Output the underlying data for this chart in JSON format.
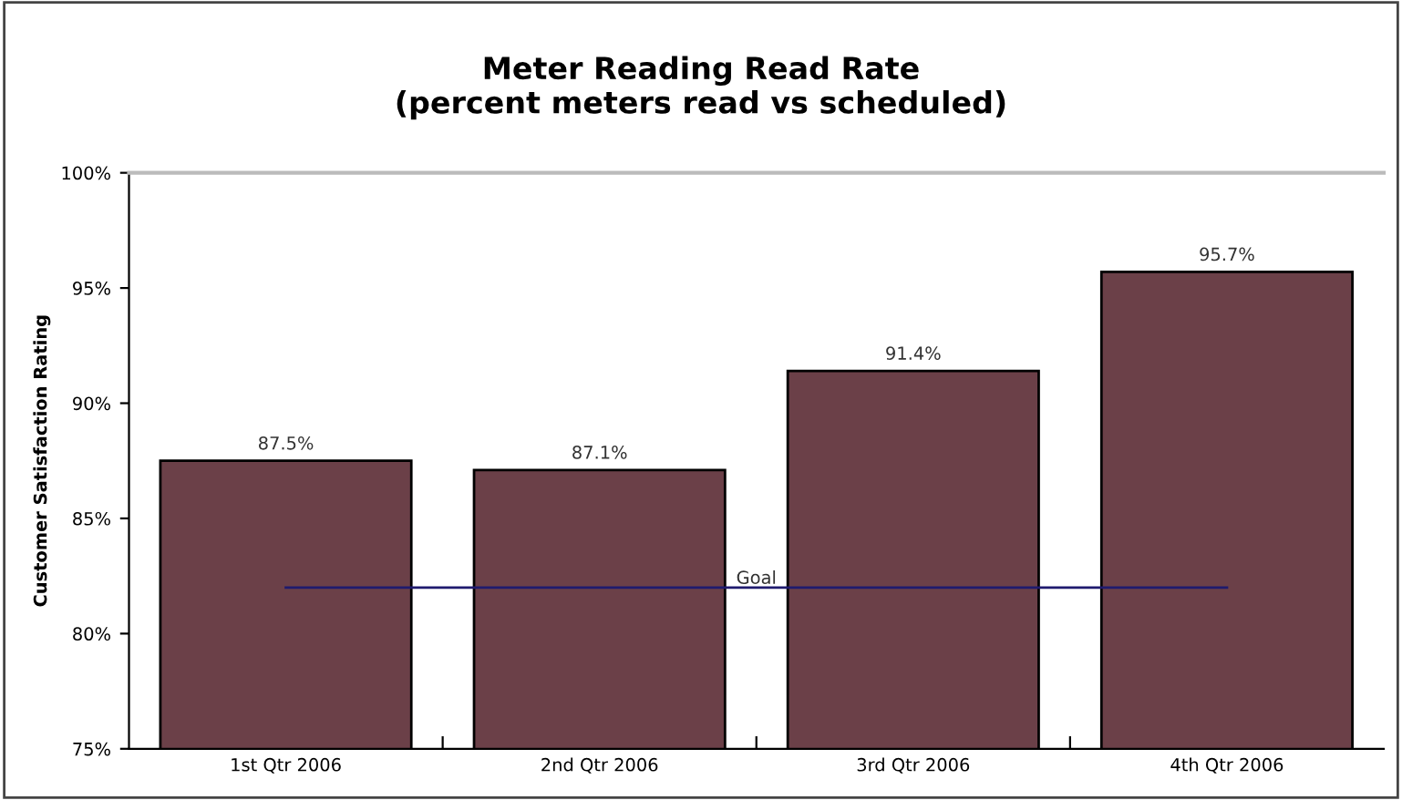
{
  "chart_data": {
    "type": "bar",
    "title": "Meter Reading Read Rate\n(percent meters read vs scheduled)",
    "ylabel": "Customer Satisfaction Rating",
    "categories": [
      "1st Qtr 2006",
      "2nd Qtr 2006",
      "3rd Qtr 2006",
      "4th Qtr 2006"
    ],
    "series": [
      {
        "color": "#6b4048",
        "values": [
          87.5,
          87.1,
          91.4,
          95.7
        ],
        "value_labels": [
          "87.5%",
          "87.1%",
          "91.4%",
          "95.7%"
        ]
      },
      {
        "type": "line",
        "name": "Goal",
        "color": "#1f1a6e",
        "values": [
          82,
          82,
          82,
          82
        ]
      }
    ],
    "ylim": [
      75,
      100
    ],
    "yticks": [
      {
        "value": 75,
        "label": "75%"
      },
      {
        "value": 80,
        "label": "80%"
      },
      {
        "value": 85,
        "label": "85%"
      },
      {
        "value": 90,
        "label": "90%"
      },
      {
        "value": 95,
        "label": "95%"
      },
      {
        "value": 100,
        "label": "100%"
      }
    ],
    "grid": false,
    "legend": false,
    "marker": "none"
  }
}
